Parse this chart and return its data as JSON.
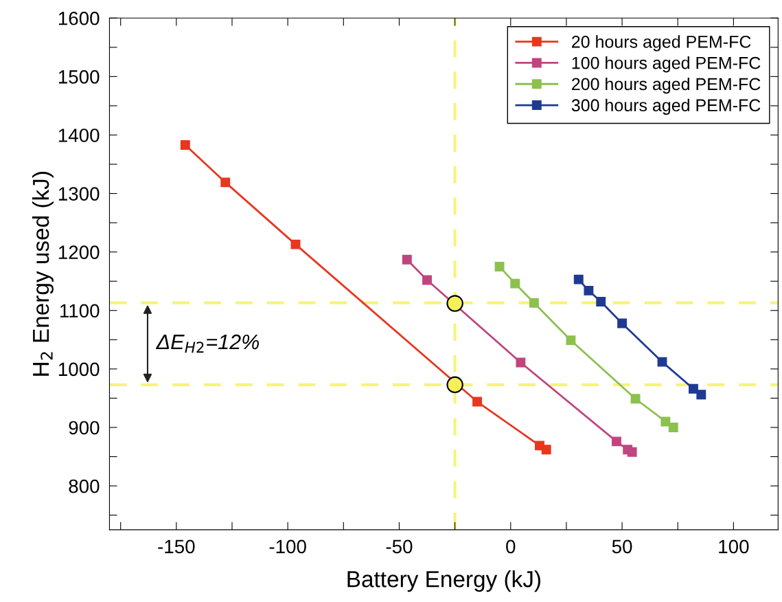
{
  "chart_data": {
    "type": "line",
    "xlabel": "Battery Energy (kJ)",
    "ylabel": "H$_{2}$ Energy used (kJ)",
    "xlim": [
      -180,
      120
    ],
    "ylim": [
      725,
      1600
    ],
    "xticks": [
      {
        "value": -175,
        "label": null
      },
      -150,
      {
        "value": -125,
        "label": null
      },
      -100,
      {
        "value": -75,
        "label": null
      },
      -50,
      {
        "value": -25,
        "label": null
      },
      0,
      {
        "value": 25,
        "label": null
      },
      50,
      {
        "value": 75,
        "label": null
      },
      100
    ],
    "yticks": [
      {
        "value": 750,
        "label": null
      },
      800,
      {
        "value": 850,
        "label": null
      },
      900,
      {
        "value": 950,
        "label": null
      },
      1000,
      {
        "value": 1050,
        "label": null
      },
      1100,
      {
        "value": 1150,
        "label": null
      },
      1200,
      {
        "value": 1250,
        "label": null
      },
      1300,
      {
        "value": 1350,
        "label": null
      },
      1400,
      {
        "value": 1450,
        "label": null
      },
      1500,
      {
        "value": 1550,
        "label": null
      },
      1600
    ],
    "grid": false,
    "legend": "top right",
    "marker": "square",
    "line_style": "solid",
    "series": [
      {
        "name": "20 hours aged PEM-FC",
        "color": "#e8361f",
        "x": [
          -146,
          -128,
          -96.5,
          -15,
          13,
          16
        ],
        "values": [
          1383,
          1319,
          1213,
          944,
          869,
          862
        ]
      },
      {
        "name": "100 hours aged PEM-FC",
        "color": "#c0457f",
        "x": [
          -46.5,
          -37.5,
          4.5,
          47.5,
          52.5,
          54.5
        ],
        "values": [
          1187,
          1152,
          1011,
          876,
          862,
          858
        ]
      },
      {
        "name": "200 hours aged PEM-FC",
        "color": "#8dc04e",
        "x": [
          -5,
          2,
          10.5,
          27,
          56,
          69.5,
          73
        ],
        "values": [
          1175,
          1146,
          1113,
          1049,
          949,
          910,
          900
        ]
      },
      {
        "name": "300 hours aged PEM-FC",
        "color": "#1f3a93",
        "x": [
          30.5,
          35,
          40.5,
          50,
          68,
          82,
          85.5
        ],
        "values": [
          1153,
          1134,
          1115,
          1078,
          1012,
          966,
          956
        ]
      },
      {
        "type": "scatter",
        "marker": "circle",
        "color": "#f5f05a",
        "x": [
          -25,
          -25
        ],
        "values": [
          1112,
          973
        ]
      }
    ],
    "ref_lines": [
      {
        "axis": "x",
        "value": -25,
        "color": "#f5f05a",
        "line_style": "dashed"
      },
      {
        "axis": "y",
        "value": 1113,
        "color": "#f5f05a",
        "line_style": "dashed"
      },
      {
        "axis": "y",
        "value": 973,
        "color": "#f5f05a",
        "line_style": "dashed"
      }
    ],
    "annotations": [
      "ΔE$_{H2}$=12%"
    ]
  }
}
